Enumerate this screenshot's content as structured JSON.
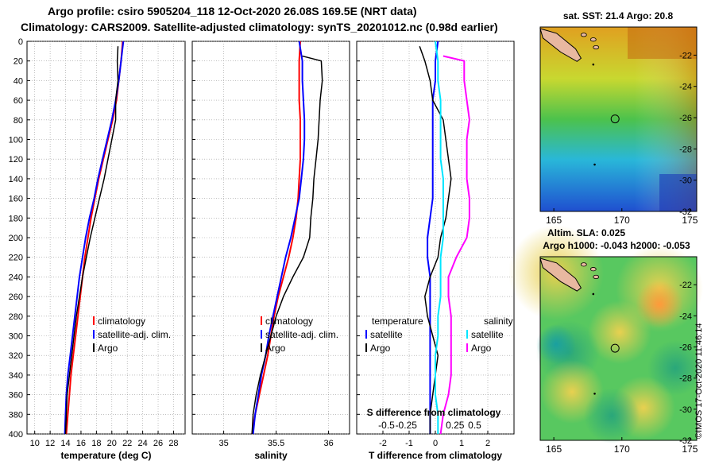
{
  "header": {
    "line1": "Argo profile: csiro 5905204_118 12-Oct-2020 26.08S 169.5E (NRT data)",
    "line2": "Climatology: CARS2009. Satellite-adjusted climatology: synTS_20201012.nc (0.98d earlier)"
  },
  "copyright": "©IMOS 17-Oct-2020 11:46:14",
  "colors": {
    "clim": "#ff0000",
    "sat": "#0000ff",
    "argo": "#000000",
    "sal_sat": "#00e5ff",
    "sal_clim": "#ff00ff"
  },
  "chart_data": [
    {
      "type": "line",
      "id": "temperature",
      "xlabel": "temperature (deg C)",
      "xlim": [
        9,
        29.5
      ],
      "xticks": [
        10,
        12,
        14,
        16,
        18,
        20,
        22,
        24,
        26,
        28
      ],
      "xtick_labels": [
        "10",
        "12",
        "14",
        "16",
        "18",
        "20",
        "22",
        "24",
        "26",
        "28"
      ],
      "ylim": [
        0,
        400
      ],
      "yticks": [
        0,
        20,
        40,
        60,
        80,
        100,
        120,
        140,
        160,
        180,
        200,
        220,
        240,
        260,
        280,
        300,
        320,
        340,
        360,
        380,
        400
      ],
      "ytick_labels": [
        "0",
        "20",
        "40",
        "60",
        "80",
        "100",
        "120",
        "140",
        "160",
        "180",
        "200",
        "220",
        "240",
        "260",
        "280",
        "300",
        "320",
        "340",
        "360",
        "380",
        "400"
      ],
      "grid": true,
      "legend": [
        {
          "label": "climatology",
          "color": "#ff0000"
        },
        {
          "label": "satellite-adj. clim.",
          "color": "#0000ff"
        },
        {
          "label": "Argo",
          "color": "#000000"
        }
      ],
      "series": [
        {
          "name": "climatology",
          "color": "#ff0000",
          "width": 2,
          "x": [
            21.4,
            21.2,
            20.9,
            20.6,
            20.1,
            19.5,
            18.9,
            18.3,
            17.8,
            17.3,
            16.9,
            16.5,
            16.2,
            15.9,
            15.6,
            15.3,
            15.0,
            14.7,
            14.5,
            14.3,
            14.1
          ],
          "y": [
            0,
            20,
            40,
            60,
            80,
            100,
            120,
            140,
            160,
            180,
            200,
            220,
            240,
            260,
            280,
            300,
            320,
            340,
            360,
            380,
            400
          ]
        },
        {
          "name": "satellite",
          "color": "#0000ff",
          "width": 2,
          "x": [
            21.5,
            21.2,
            20.9,
            20.5,
            20.0,
            19.4,
            18.8,
            18.2,
            17.7,
            17.1,
            16.6,
            16.2,
            15.8,
            15.5,
            15.2,
            14.9,
            14.6,
            14.3,
            14.1,
            14.0,
            13.9
          ],
          "y": [
            0,
            20,
            40,
            60,
            80,
            100,
            120,
            140,
            160,
            180,
            200,
            220,
            240,
            260,
            280,
            300,
            320,
            340,
            360,
            380,
            400
          ]
        },
        {
          "name": "Argo",
          "color": "#000000",
          "width": 1.5,
          "x": [
            20.8,
            20.7,
            20.8,
            20.5,
            20.5,
            20.0,
            19.5,
            19.0,
            18.4,
            17.8,
            17.2,
            16.7,
            16.2,
            15.8,
            15.4,
            15.1,
            14.8,
            14.5,
            14.2,
            14.1,
            14.0
          ],
          "y": [
            5,
            20,
            40,
            60,
            80,
            100,
            120,
            140,
            160,
            180,
            200,
            220,
            240,
            260,
            280,
            300,
            320,
            340,
            360,
            380,
            400
          ]
        }
      ]
    },
    {
      "type": "line",
      "id": "salinity",
      "xlabel": "salinity",
      "xlim": [
        34.7,
        36.2
      ],
      "xticks": [
        35,
        35.5,
        36
      ],
      "xtick_labels": [
        "35",
        "35.5",
        "36"
      ],
      "ylim": [
        0,
        400
      ],
      "grid": true,
      "legend": [
        {
          "label": "climatology",
          "color": "#ff0000"
        },
        {
          "label": "satellite-adj. clim.",
          "color": "#0000ff"
        },
        {
          "label": "Argo",
          "color": "#000000"
        }
      ],
      "series": [
        {
          "name": "climatology",
          "color": "#ff0000",
          "width": 2,
          "x": [
            35.73,
            35.72,
            35.72,
            35.72,
            35.73,
            35.73,
            35.73,
            35.72,
            35.71,
            35.69,
            35.66,
            35.62,
            35.57,
            35.52,
            35.48,
            35.45,
            35.42,
            35.38,
            35.34,
            35.3,
            35.27
          ],
          "y": [
            0,
            20,
            40,
            60,
            80,
            100,
            120,
            140,
            160,
            180,
            200,
            220,
            240,
            260,
            280,
            300,
            320,
            340,
            360,
            380,
            400
          ]
        },
        {
          "name": "satellite",
          "color": "#0000ff",
          "width": 2,
          "x": [
            35.72,
            35.75,
            35.75,
            35.76,
            35.77,
            35.77,
            35.76,
            35.74,
            35.72,
            35.68,
            35.64,
            35.59,
            35.55,
            35.51,
            35.47,
            35.43,
            35.4,
            35.36,
            35.33,
            35.3,
            35.28
          ],
          "y": [
            0,
            20,
            40,
            60,
            80,
            100,
            120,
            140,
            160,
            180,
            200,
            220,
            240,
            260,
            280,
            300,
            320,
            340,
            360,
            380,
            400
          ]
        },
        {
          "name": "Argo",
          "color": "#000000",
          "width": 1.5,
          "x": [
            35.75,
            35.93,
            35.94,
            35.92,
            35.91,
            35.9,
            35.88,
            35.86,
            35.85,
            35.83,
            35.82,
            35.76,
            35.66,
            35.57,
            35.5,
            35.45,
            35.4,
            35.35,
            35.31,
            35.28,
            35.27
          ],
          "y": [
            15,
            20,
            40,
            60,
            80,
            100,
            120,
            140,
            160,
            180,
            200,
            220,
            240,
            260,
            280,
            300,
            320,
            340,
            360,
            380,
            400
          ]
        }
      ]
    },
    {
      "type": "line",
      "id": "difference",
      "xlabel": "T difference from climatology",
      "xlabel_top": "S difference from climatology",
      "xlim": [
        -3,
        3
      ],
      "xticks": [
        -2,
        -1,
        0,
        1,
        2
      ],
      "xtick_labels": [
        "-2",
        "-1",
        "0",
        "1",
        "2"
      ],
      "top_ticks": [
        -1.5,
        -0.75,
        0.75,
        1.5
      ],
      "top_tick_labels": [
        "-0.5",
        "-0.25",
        "0.25",
        "0.5"
      ],
      "ylim": [
        0,
        400
      ],
      "grid": true,
      "legend_left": {
        "title": "temperature",
        "items": [
          {
            "label": "satellite",
            "color": "#0000ff"
          },
          {
            "label": "Argo",
            "color": "#000000"
          }
        ]
      },
      "legend_right": {
        "title": "salinity",
        "items": [
          {
            "label": "satellite",
            "color": "#00e5ff"
          },
          {
            "label": "Argo",
            "color": "#ff00ff"
          }
        ]
      },
      "series": [
        {
          "name": "T satellite",
          "color": "#0000ff",
          "width": 2,
          "x": [
            0.1,
            0.0,
            0.0,
            -0.1,
            -0.1,
            -0.1,
            -0.1,
            -0.1,
            -0.1,
            -0.2,
            -0.3,
            -0.3,
            -0.2,
            -0.2,
            -0.2,
            -0.2,
            -0.2,
            -0.2,
            -0.2,
            -0.2,
            -0.2
          ],
          "y": [
            0,
            20,
            40,
            60,
            80,
            100,
            120,
            140,
            160,
            180,
            200,
            220,
            240,
            260,
            280,
            300,
            320,
            340,
            360,
            380,
            400
          ]
        },
        {
          "name": "T Argo",
          "color": "#000000",
          "width": 1.5,
          "x": [
            -0.6,
            -0.4,
            -0.2,
            -0.1,
            0.3,
            0.4,
            0.5,
            0.6,
            0.5,
            0.4,
            0.2,
            0.1,
            -0.2,
            -0.4,
            -0.3,
            -0.1,
            0.1,
            0.0,
            -0.1,
            -0.2,
            -0.2
          ],
          "y": [
            5,
            20,
            40,
            60,
            80,
            100,
            120,
            140,
            160,
            180,
            200,
            220,
            240,
            260,
            280,
            300,
            320,
            340,
            360,
            380,
            400
          ]
        },
        {
          "name": "S satellite",
          "color": "#00e5ff",
          "width": 2,
          "x": [
            0.0,
            0.1,
            0.1,
            0.2,
            0.2,
            0.2,
            0.2,
            0.3,
            0.3,
            0.3,
            0.3,
            0.2,
            0.2,
            0.2,
            0.1,
            0.1,
            0.0,
            0.0,
            0.0,
            0.1,
            0.1
          ],
          "y": [
            0,
            20,
            40,
            60,
            80,
            100,
            120,
            140,
            160,
            180,
            200,
            220,
            240,
            260,
            280,
            300,
            320,
            340,
            360,
            380,
            400
          ]
        },
        {
          "name": "S Argo",
          "color": "#ff00ff",
          "width": 2,
          "x": [
            0.3,
            1.1,
            1.1,
            1.2,
            1.3,
            1.2,
            1.2,
            1.2,
            1.3,
            1.3,
            1.2,
            0.8,
            0.5,
            0.5,
            0.6,
            0.6,
            0.6,
            0.6,
            0.5,
            0.3,
            0.2
          ],
          "y": [
            15,
            20,
            40,
            60,
            80,
            100,
            120,
            140,
            160,
            180,
            200,
            220,
            240,
            260,
            280,
            300,
            320,
            340,
            360,
            380,
            400
          ]
        }
      ]
    },
    {
      "type": "heatmap",
      "id": "sst_map",
      "title": "sat. SST: 21.4 Argo: 20.8",
      "xlim": [
        164,
        175.5
      ],
      "ylim": [
        -32,
        -20.2
      ],
      "xticks": [
        165,
        170,
        175
      ],
      "xtick_labels": [
        "165",
        "170",
        "175"
      ],
      "yticks": [
        -22,
        -24,
        -26,
        -28,
        -30,
        -32
      ],
      "ytick_labels": [
        "-22",
        "-24",
        "-26",
        "-28",
        "-30",
        "-32"
      ],
      "marker": {
        "lon": 169.5,
        "lat": -26.08
      }
    },
    {
      "type": "heatmap",
      "id": "sla_map",
      "title": "Altim. SLA: 0.025",
      "subtitle": "Argo h1000: -0.043 h2000: -0.053",
      "xlim": [
        164,
        175.5
      ],
      "ylim": [
        -32,
        -20.2
      ],
      "xticks": [
        165,
        170,
        175
      ],
      "xtick_labels": [
        "165",
        "170",
        "175"
      ],
      "yticks": [
        -22,
        -24,
        -26,
        -28,
        -30,
        -32
      ],
      "ytick_labels": [
        "-22",
        "-24",
        "-26",
        "-28",
        "-30",
        "-32"
      ],
      "marker": {
        "lon": 169.5,
        "lat": -26.08
      }
    }
  ]
}
